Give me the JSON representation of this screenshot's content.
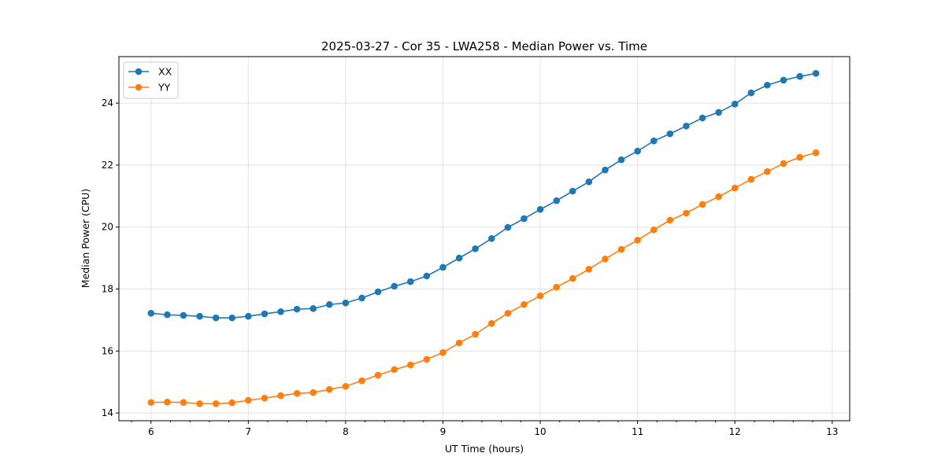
{
  "chart_data": {
    "type": "line",
    "title": "2025-03-27 - Cor 35 - LWA258 - Median Power vs. Time",
    "xlabel": "UT Time (hours)",
    "ylabel": "Median Power (CPU)",
    "xlim": [
      5.67,
      13.18
    ],
    "ylim": [
      13.75,
      25.5
    ],
    "xticks": [
      6,
      7,
      8,
      9,
      10,
      11,
      12,
      13
    ],
    "yticks": [
      14,
      16,
      18,
      20,
      22,
      24
    ],
    "grid": true,
    "legend_position": "top-left",
    "x": [
      6.0,
      6.167,
      6.333,
      6.5,
      6.667,
      6.833,
      7.0,
      7.167,
      7.333,
      7.5,
      7.667,
      7.833,
      8.0,
      8.167,
      8.333,
      8.5,
      8.667,
      8.833,
      9.0,
      9.167,
      9.333,
      9.5,
      9.667,
      9.833,
      10.0,
      10.167,
      10.333,
      10.5,
      10.667,
      10.833,
      11.0,
      11.167,
      11.333,
      11.5,
      11.667,
      11.833,
      12.0,
      12.167,
      12.333,
      12.5,
      12.667,
      12.833
    ],
    "series": [
      {
        "name": "XX",
        "color": "#1f77b4",
        "values": [
          17.22,
          17.17,
          17.15,
          17.12,
          17.07,
          17.07,
          17.12,
          17.2,
          17.27,
          17.35,
          17.37,
          17.5,
          17.55,
          17.71,
          17.91,
          18.09,
          18.24,
          18.42,
          18.7,
          19.0,
          19.3,
          19.63,
          19.99,
          20.27,
          20.57,
          20.85,
          21.16,
          21.46,
          21.84,
          22.17,
          22.45,
          22.78,
          23.01,
          23.26,
          23.52,
          23.7,
          23.97,
          24.33,
          24.58,
          24.74,
          24.86,
          24.96
        ]
      },
      {
        "name": "YY",
        "color": "#ff7f0e",
        "values": [
          14.34,
          14.35,
          14.34,
          14.3,
          14.3,
          14.33,
          14.41,
          14.48,
          14.56,
          14.63,
          14.66,
          14.76,
          14.86,
          15.04,
          15.22,
          15.4,
          15.55,
          15.73,
          15.95,
          16.26,
          16.54,
          16.89,
          17.22,
          17.5,
          17.78,
          18.06,
          18.34,
          18.64,
          18.97,
          19.28,
          19.58,
          19.91,
          20.22,
          20.45,
          20.73,
          20.98,
          21.26,
          21.54,
          21.79,
          22.05,
          22.25,
          22.4
        ]
      }
    ]
  }
}
